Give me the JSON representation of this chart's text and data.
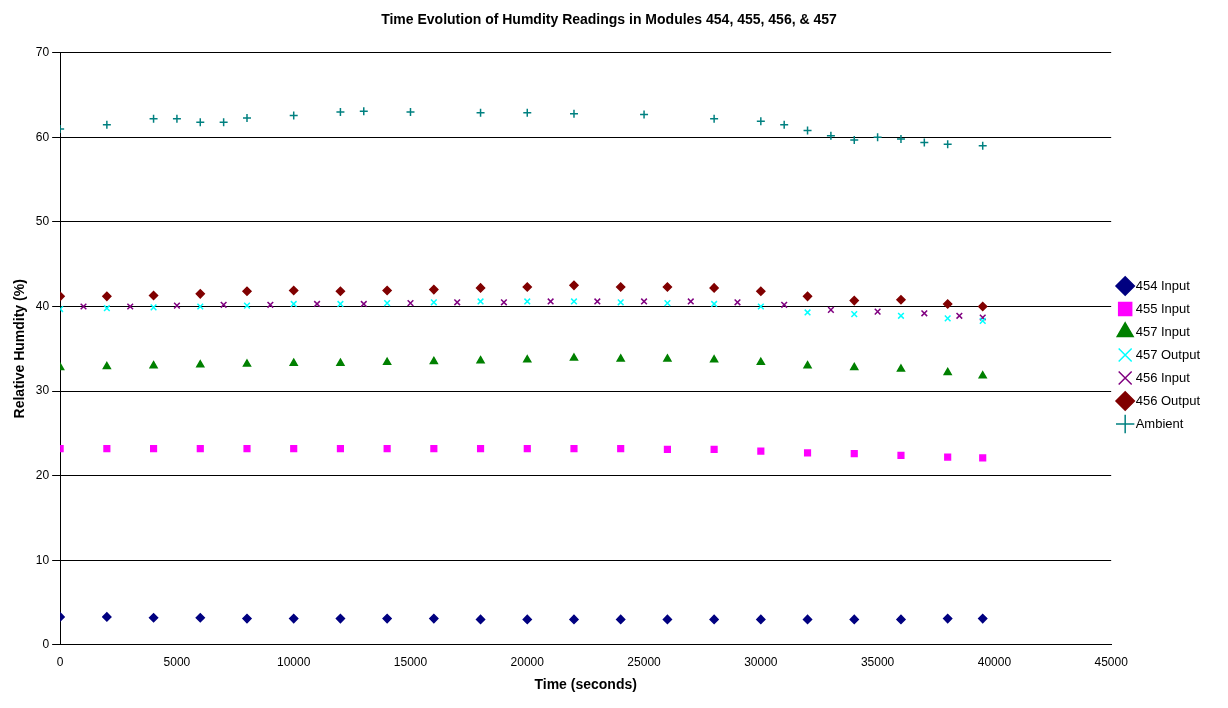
{
  "chart_data": {
    "type": "scatter",
    "title": "Time Evolution of Humdity Readings in Modules 454, 455, 456, & 457",
    "xlabel": "Time (seconds)",
    "ylabel": "Relative Humdity (%)",
    "xlim": [
      0,
      45000
    ],
    "xticks": [
      0,
      5000,
      10000,
      15000,
      20000,
      25000,
      30000,
      35000,
      40000,
      45000
    ],
    "ylim": [
      0,
      70
    ],
    "yticks": [
      0,
      10,
      20,
      30,
      40,
      50,
      60,
      70
    ],
    "grid": "y",
    "legend": "right",
    "series": [
      {
        "name": "454 Input",
        "color": "#000080",
        "marker": "diamond",
        "x": [
          0,
          2000,
          4000,
          6000,
          8000,
          10000,
          12000,
          14000,
          16000,
          18000,
          20000,
          22000,
          24000,
          26000,
          28000,
          30000,
          32000,
          34000,
          36000,
          38000,
          39500
        ],
        "values": [
          3.3,
          3.3,
          3.2,
          3.2,
          3.1,
          3.1,
          3.1,
          3.1,
          3.1,
          3.0,
          3.0,
          3.0,
          3.0,
          3.0,
          3.0,
          3.0,
          3.0,
          3.0,
          3.0,
          3.1,
          3.1
        ]
      },
      {
        "name": "455 Input",
        "color": "#ff00ff",
        "marker": "square",
        "x": [
          0,
          2000,
          4000,
          6000,
          8000,
          10000,
          12000,
          14000,
          16000,
          18000,
          20000,
          22000,
          24000,
          26000,
          28000,
          30000,
          32000,
          34000,
          36000,
          38000,
          39500
        ],
        "values": [
          23.2,
          23.2,
          23.2,
          23.2,
          23.2,
          23.2,
          23.2,
          23.2,
          23.2,
          23.2,
          23.2,
          23.2,
          23.2,
          23.1,
          23.1,
          22.9,
          22.7,
          22.6,
          22.4,
          22.2,
          22.1
        ]
      },
      {
        "name": "457 Input",
        "color": "#008000",
        "marker": "triangle",
        "x": [
          0,
          2000,
          4000,
          6000,
          8000,
          10000,
          12000,
          14000,
          16000,
          18000,
          20000,
          22000,
          24000,
          26000,
          28000,
          30000,
          32000,
          34000,
          36000,
          38000,
          39500
        ],
        "values": [
          32.8,
          32.9,
          33.0,
          33.1,
          33.2,
          33.3,
          33.3,
          33.4,
          33.5,
          33.6,
          33.7,
          33.9,
          33.8,
          33.8,
          33.7,
          33.4,
          33.0,
          32.8,
          32.6,
          32.2,
          31.8
        ]
      },
      {
        "name": "457 Output",
        "color": "#00ffff",
        "marker": "cross",
        "x": [
          0,
          2000,
          4000,
          6000,
          8000,
          10000,
          12000,
          14000,
          16000,
          18000,
          20000,
          22000,
          24000,
          26000,
          28000,
          30000,
          32000,
          34000,
          36000,
          38000,
          39500
        ],
        "values": [
          39.7,
          39.8,
          39.9,
          40.0,
          40.1,
          40.3,
          40.3,
          40.4,
          40.5,
          40.6,
          40.6,
          40.6,
          40.5,
          40.4,
          40.3,
          40.0,
          39.3,
          39.1,
          38.9,
          38.6,
          38.3
        ]
      },
      {
        "name": "456 Input",
        "color": "#800080",
        "marker": "cross",
        "x": [
          1000,
          3000,
          5000,
          7000,
          9000,
          11000,
          13000,
          15000,
          17000,
          19000,
          21000,
          23000,
          25000,
          27000,
          29000,
          31000,
          33000,
          35000,
          37000,
          38500,
          39500
        ],
        "values": [
          40.0,
          40.0,
          40.1,
          40.2,
          40.2,
          40.3,
          40.3,
          40.4,
          40.5,
          40.5,
          40.6,
          40.6,
          40.6,
          40.6,
          40.5,
          40.2,
          39.6,
          39.4,
          39.2,
          38.9,
          38.7
        ]
      },
      {
        "name": "456 Output",
        "color": "#800000",
        "marker": "diamond",
        "x": [
          0,
          2000,
          4000,
          6000,
          8000,
          10000,
          12000,
          14000,
          16000,
          18000,
          20000,
          22000,
          24000,
          26000,
          28000,
          30000,
          32000,
          34000,
          36000,
          38000,
          39500
        ],
        "values": [
          41.2,
          41.2,
          41.3,
          41.5,
          41.8,
          41.9,
          41.8,
          41.9,
          42.0,
          42.2,
          42.3,
          42.5,
          42.3,
          42.3,
          42.2,
          41.8,
          41.2,
          40.7,
          40.8,
          40.3,
          40.0
        ]
      },
      {
        "name": "Ambient",
        "color": "#008080",
        "marker": "plus",
        "x": [
          0,
          2000,
          4000,
          5000,
          6000,
          7000,
          8000,
          10000,
          12000,
          13000,
          15000,
          18000,
          20000,
          22000,
          25000,
          28000,
          30000,
          31000,
          32000,
          33000,
          34000,
          35000,
          36000,
          37000,
          38000,
          39500
        ],
        "values": [
          61.0,
          61.5,
          62.2,
          62.2,
          61.8,
          61.8,
          62.3,
          62.6,
          63.0,
          63.1,
          63.0,
          62.9,
          62.9,
          62.8,
          62.7,
          62.2,
          61.9,
          61.5,
          60.8,
          60.2,
          59.7,
          60.0,
          59.8,
          59.4,
          59.2,
          59.0
        ]
      }
    ]
  }
}
